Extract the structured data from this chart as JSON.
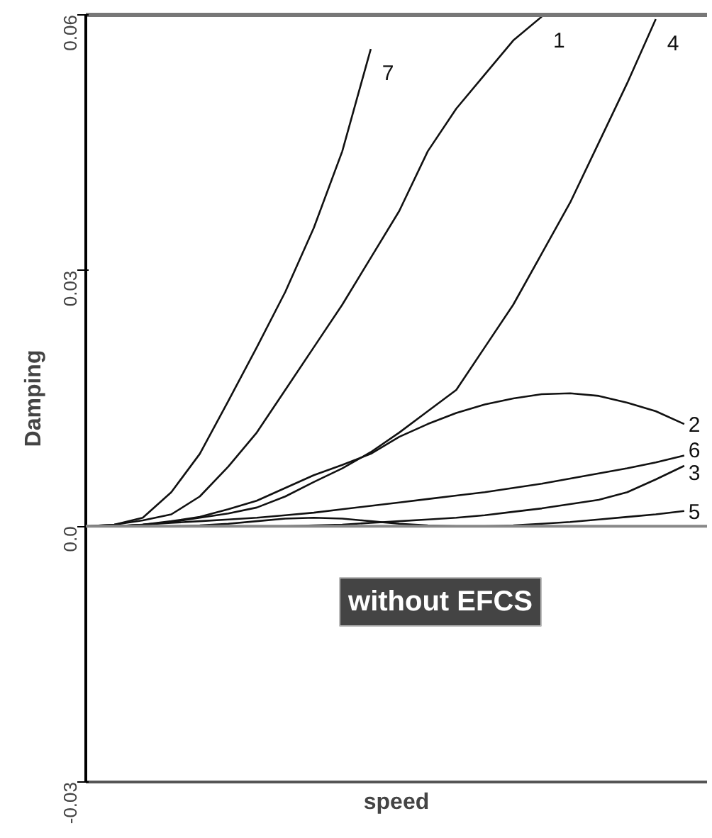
{
  "chart_data": {
    "type": "line",
    "xlabel": "speed",
    "ylabel": "Damping",
    "categories": [
      null,
      null,
      null,
      null,
      null,
      null,
      null,
      null,
      null,
      null,
      null,
      null,
      null,
      null,
      null,
      null,
      null,
      null,
      null,
      null,
      null,
      null
    ],
    "ylim": [
      -0.03,
      0.06
    ],
    "yticks": [
      {
        "value": -0.03,
        "label": "-0.03"
      },
      {
        "value": 0,
        "label": "0.0"
      },
      0.03,
      0.06
    ],
    "grid": false,
    "marker": "none",
    "line_style": "solid",
    "ref_lines": [
      {
        "axis": "y",
        "value": 0,
        "label": null,
        "color": "#888888"
      }
    ],
    "annotations": [
      "without EFCS"
    ],
    "series": [
      {
        "name": "7",
        "color": "#111111",
        "values": [
          0,
          0.0002,
          0.001,
          0.004,
          0.0085,
          0.0147,
          0.021,
          0.0275,
          0.035,
          0.044,
          0.056,
          null,
          null,
          null,
          null,
          null,
          null,
          null,
          null,
          null,
          null,
          null
        ]
      },
      {
        "name": "1",
        "color": "#111111",
        "values": [
          0,
          0.0002,
          0.0007,
          0.0014,
          0.0035,
          0.007,
          0.011,
          0.016,
          0.021,
          0.026,
          0.0315,
          0.037,
          0.044,
          0.049,
          0.053,
          0.057,
          0.0598,
          null,
          null,
          null,
          null,
          null
        ]
      },
      {
        "name": "4",
        "color": "#111111",
        "values": [
          0,
          0,
          0.0002,
          0.0005,
          0.001,
          0.0015,
          0.0022,
          0.0035,
          0.0052,
          0.0068,
          0.0087,
          0.011,
          0.0135,
          0.016,
          0.021,
          0.026,
          0.032,
          0.038,
          0.045,
          0.052,
          0.0595,
          null
        ]
      },
      {
        "name": "2",
        "color": "#111111",
        "values": [
          0,
          0,
          0.0002,
          0.0006,
          0.0011,
          0.002,
          0.003,
          0.0045,
          0.006,
          0.0072,
          0.0085,
          0.0105,
          0.012,
          0.0133,
          0.0143,
          0.015,
          0.0155,
          0.0156,
          0.0153,
          0.0145,
          0.0135,
          0.012
        ]
      },
      {
        "name": "6",
        "color": "#111111",
        "values": [
          0,
          0,
          0.0002,
          0.0004,
          0.0006,
          0.0008,
          0.001,
          0.0013,
          0.0016,
          0.002,
          0.0024,
          0.0028,
          0.0032,
          0.0036,
          0.004,
          0.0045,
          0.005,
          0.0056,
          0.0062,
          0.0068,
          0.0075,
          0.0083
        ]
      },
      {
        "name": "3",
        "color": "#111111",
        "values": [
          0,
          0,
          0,
          0,
          0,
          0,
          0,
          0,
          0.0001,
          0.0002,
          0.0004,
          0.0006,
          0.0008,
          0.001,
          0.0013,
          0.0017,
          0.0021,
          0.0026,
          0.0031,
          0.004,
          0.0055,
          0.0071
        ]
      },
      {
        "name": "5",
        "color": "#111111",
        "values": [
          0,
          0,
          0,
          0,
          0.0001,
          0.0003,
          0.0006,
          0.0009,
          0.001,
          0.0009,
          0.0006,
          0.0003,
          0.0001,
          0,
          0,
          0.0001,
          0.0003,
          0.0005,
          0.0008,
          0.0011,
          0.0014,
          0.0018
        ]
      }
    ]
  }
}
